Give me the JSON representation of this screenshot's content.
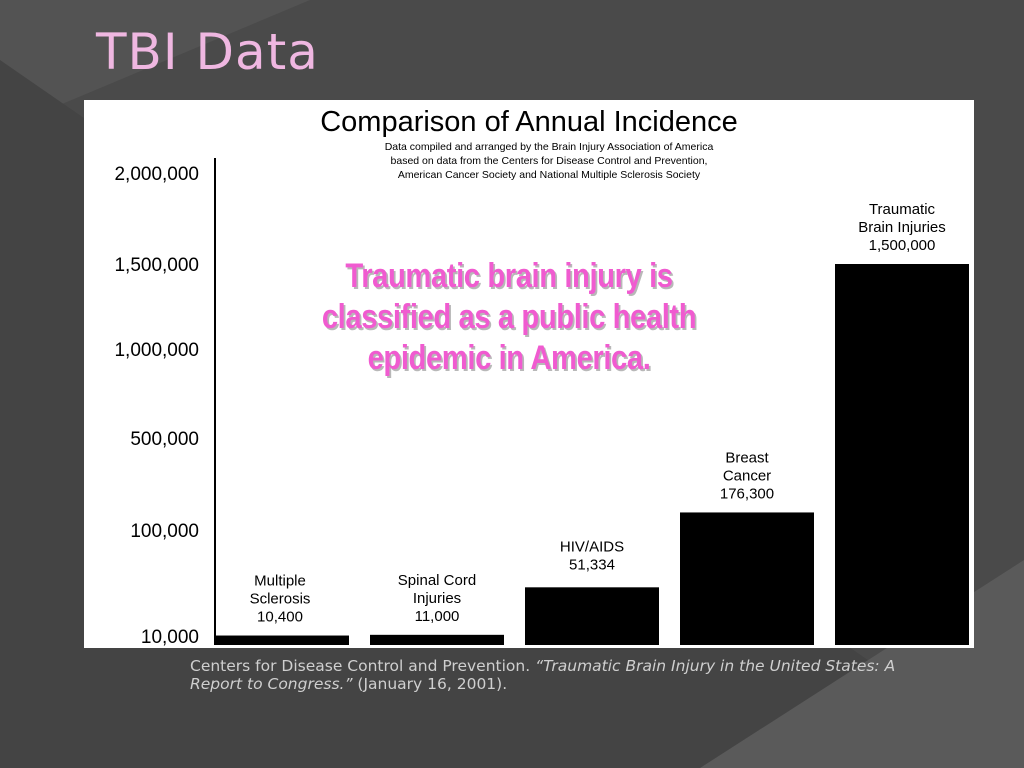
{
  "slide": {
    "title": "TBI Data",
    "citation_plain_1": "Centers for Disease Control and Prevention.  ",
    "citation_italic": "“Traumatic Brain Injury in the United States:  A Report to Congress.”",
    "citation_plain_2": "  (January 16, 2001)."
  },
  "callout": {
    "text": "Traumatic brain injury is classified as a public health epidemic in America."
  },
  "colors": {
    "background": "#4a4a4a",
    "title": "#efb7e1",
    "callout": "#f05bd0",
    "bars": "#000000",
    "panel": "#ffffff"
  },
  "chart_data": {
    "type": "bar",
    "title": "Comparison of Annual Incidence",
    "subtitle": [
      "Data compiled and arranged by the Brain Injury Association of America",
      "based on data from the Centers for Disease Control and Prevention,",
      "American Cancer Society and National Multiple Sclerosis Society"
    ],
    "categories": [
      [
        "Multiple",
        "Sclerosis",
        "10,400"
      ],
      [
        "Spinal Cord",
        "Injuries",
        "11,000"
      ],
      [
        "HIV/AIDS",
        "51,334"
      ],
      [
        "Breast",
        "Cancer",
        "176,300"
      ],
      [
        "Traumatic",
        "Brain Injuries",
        "1,500,000"
      ]
    ],
    "values": [
      10400,
      11000,
      51334,
      176300,
      1500000
    ],
    "y_ticks": [
      {
        "value": 10000,
        "label": "10,000"
      },
      {
        "value": 100000,
        "label": "100,000"
      },
      {
        "value": 500000,
        "label": "500,000"
      },
      {
        "value": 1000000,
        "label": "1,000,000"
      },
      {
        "value": 1500000,
        "label": "1,500,000"
      },
      {
        "value": 2000000,
        "label": "2,000,000"
      }
    ],
    "y_scale": "non-uniform",
    "ylim": [
      10000,
      2000000
    ],
    "grid": false,
    "legend": "none"
  }
}
